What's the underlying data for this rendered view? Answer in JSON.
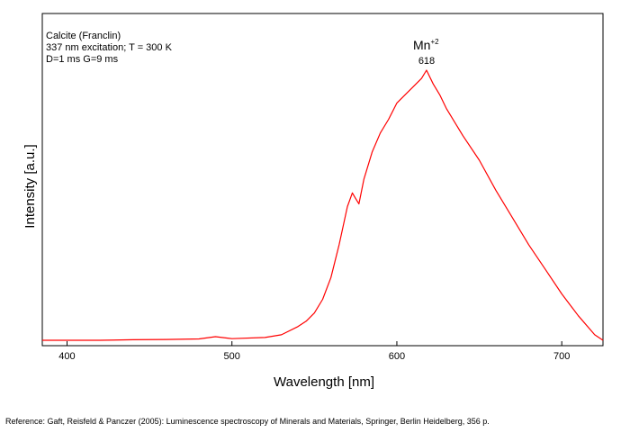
{
  "chart_data": {
    "type": "line",
    "title": "",
    "xlabel": "Wavelength [nm]",
    "ylabel": "Intensity [a.u.]",
    "xlim": [
      385,
      725
    ],
    "ylim": [
      0,
      100
    ],
    "x_ticks": [
      400,
      500,
      600,
      700
    ],
    "y_ticks": [],
    "grid": false,
    "legend": "none",
    "line_color": "#ff0000",
    "annotations": {
      "sample": "Calcite (Franclin)",
      "conditions": "337 nm excitation; T = 300 K",
      "gate": "D=1 ms G=9 ms"
    },
    "peak": {
      "species": "Mn",
      "charge": "+2",
      "wavelength_label": "618",
      "x": 618
    },
    "series": [
      {
        "x": [
          385,
          400,
          420,
          440,
          460,
          480,
          490,
          500,
          520,
          530,
          540,
          545,
          550,
          555,
          560,
          565,
          570,
          573,
          575,
          577,
          580,
          585,
          590,
          595,
          600,
          605,
          610,
          615,
          618,
          622,
          626,
          630,
          640,
          650,
          660,
          670,
          680,
          690,
          700,
          710,
          720,
          725
        ],
        "y": [
          1,
          1,
          1,
          1.2,
          1.3,
          1.5,
          2.3,
          1.6,
          2,
          3,
          6,
          8,
          11,
          16,
          24,
          36,
          50,
          55,
          53,
          51,
          60,
          70,
          77,
          82,
          88,
          91,
          94,
          97,
          100,
          95,
          91,
          86,
          76,
          67,
          56,
          46,
          36,
          27,
          18,
          10,
          3,
          1
        ]
      }
    ]
  },
  "reference": "Reference: Gaft, Reisfeld & Panczer (2005): Luminescence spectroscopy of Minerals and Materials, Springer, Berlin Heidelberg, 356 p."
}
